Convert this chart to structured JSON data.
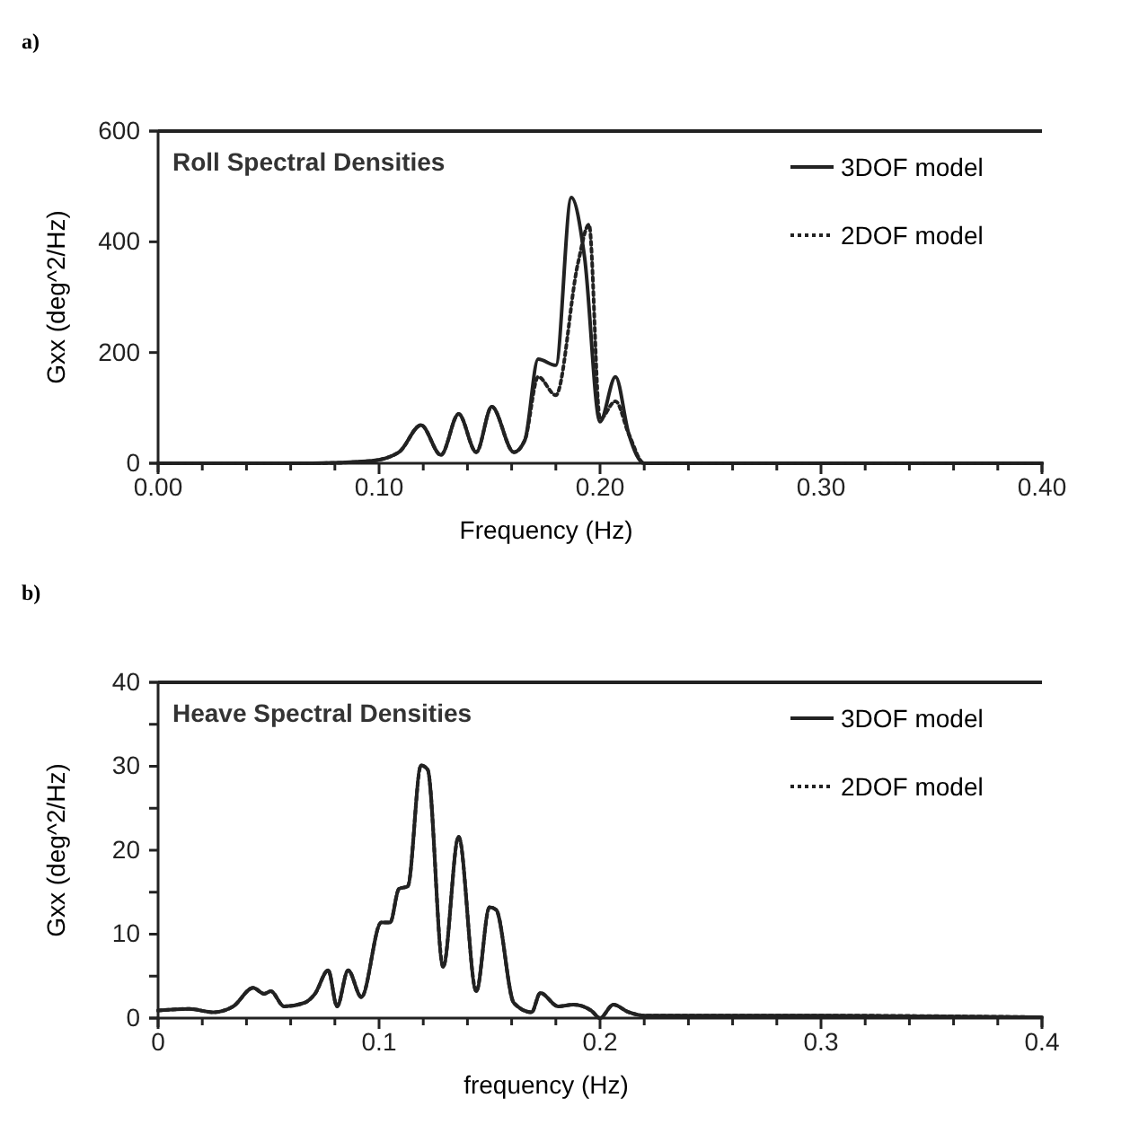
{
  "chart_data": [
    {
      "type": "line",
      "title": "Roll Spectral Densities",
      "xlabel": "Frequency (Hz)",
      "ylabel": "Gxx (deg^2/Hz)",
      "annotations": [
        "a)"
      ],
      "xlim": [
        0,
        0.4
      ],
      "ylim": [
        0,
        600
      ],
      "xticks": [
        {
          "value": 0,
          "label": "0.00"
        },
        {
          "value": 0.02,
          "label": null
        },
        {
          "value": 0.04,
          "label": null
        },
        {
          "value": 0.06,
          "label": null
        },
        {
          "value": 0.08,
          "label": null
        },
        {
          "value": 0.1,
          "label": "0.10"
        },
        {
          "value": 0.12,
          "label": null
        },
        {
          "value": 0.14,
          "label": null
        },
        {
          "value": 0.16,
          "label": null
        },
        {
          "value": 0.18,
          "label": null
        },
        {
          "value": 0.2,
          "label": "0.20"
        },
        {
          "value": 0.22,
          "label": null
        },
        {
          "value": 0.24,
          "label": null
        },
        {
          "value": 0.26,
          "label": null
        },
        {
          "value": 0.28,
          "label": null
        },
        {
          "value": 0.3,
          "label": "0.30"
        },
        {
          "value": 0.32,
          "label": null
        },
        {
          "value": 0.34,
          "label": null
        },
        {
          "value": 0.36,
          "label": null
        },
        {
          "value": 0.38,
          "label": null
        },
        {
          "value": 0.4,
          "label": "0.40"
        }
      ],
      "yticks": [
        0,
        200,
        400,
        600
      ],
      "grid": false,
      "legend": "top right",
      "marker": "none",
      "series": [
        {
          "name": "3DOF model",
          "color": "#222222",
          "line_style": "solid",
          "x": [
            0,
            0.07,
            0.096,
            0.109,
            0.119,
            0.128,
            0.136,
            0.144,
            0.151,
            0.161,
            0.166,
            0.172,
            0.18,
            0.187,
            0.193,
            0.2,
            0.207,
            0.213,
            0.22,
            0.3,
            0.4
          ],
          "values": [
            0,
            0,
            4,
            20,
            69,
            15,
            89,
            20,
            102,
            20,
            42,
            188,
            177,
            480,
            372,
            75,
            156,
            53,
            0,
            0,
            0
          ]
        },
        {
          "name": "2DOF model",
          "color": "#222222",
          "line_style": "dotted",
          "x": [
            0,
            0.07,
            0.096,
            0.109,
            0.119,
            0.128,
            0.136,
            0.144,
            0.151,
            0.161,
            0.166,
            0.172,
            0.18,
            0.19,
            0.195,
            0.2,
            0.207,
            0.213,
            0.22,
            0.3,
            0.4
          ],
          "values": [
            0,
            0,
            4,
            20,
            69,
            15,
            89,
            20,
            102,
            20,
            42,
            156,
            123,
            361,
            431,
            80,
            112,
            53,
            0,
            0,
            0
          ]
        }
      ]
    },
    {
      "type": "line",
      "title": "Heave Spectral Densities",
      "xlabel": "frequency (Hz)",
      "ylabel": "Gxx (deg^2/Hz)",
      "annotations": [
        "b)"
      ],
      "xlim": [
        0,
        0.4
      ],
      "ylim": [
        0,
        40
      ],
      "xticks": [
        0,
        {
          "value": 0.02,
          "label": null
        },
        {
          "value": 0.04,
          "label": null
        },
        {
          "value": 0.06,
          "label": null
        },
        {
          "value": 0.08,
          "label": null
        },
        0.1,
        {
          "value": 0.12,
          "label": null
        },
        {
          "value": 0.14,
          "label": null
        },
        {
          "value": 0.16,
          "label": null
        },
        {
          "value": 0.18,
          "label": null
        },
        0.2,
        {
          "value": 0.22,
          "label": null
        },
        {
          "value": 0.24,
          "label": null
        },
        {
          "value": 0.26,
          "label": null
        },
        {
          "value": 0.28,
          "label": null
        },
        0.3,
        {
          "value": 0.32,
          "label": null
        },
        {
          "value": 0.34,
          "label": null
        },
        {
          "value": 0.36,
          "label": null
        },
        {
          "value": 0.38,
          "label": null
        },
        0.4
      ],
      "yticks": [
        0,
        {
          "value": 5,
          "label": null
        },
        10,
        {
          "value": 15,
          "label": null
        },
        20,
        {
          "value": 25,
          "label": null
        },
        30,
        {
          "value": 35,
          "label": null
        },
        40
      ],
      "grid": false,
      "legend": "top right",
      "marker": "none",
      "series": [
        {
          "name": "3DOF model",
          "color": "#222222",
          "line_style": "solid",
          "x": [
            0,
            0.014,
            0.025,
            0.034,
            0.043,
            0.048,
            0.051,
            0.057,
            0.066,
            0.071,
            0.077,
            0.081,
            0.086,
            0.092,
            0.101,
            0.105,
            0.109,
            0.113,
            0.119,
            0.122,
            0.129,
            0.136,
            0.144,
            0.15,
            0.153,
            0.161,
            0.169,
            0.173,
            0.181,
            0.188,
            0.196,
            0.2,
            0.206,
            0.213,
            0.22,
            0.3,
            0.4
          ],
          "values": [
            0.9,
            1.1,
            0.7,
            1.4,
            3.6,
            2.9,
            3.2,
            1.4,
            1.8,
            2.9,
            5.7,
            1.4,
            5.7,
            2.5,
            11.4,
            11.4,
            15.4,
            15.7,
            30.1,
            29.6,
            6.1,
            21.6,
            3.2,
            13.2,
            12.9,
            1.8,
            0.7,
            3.0,
            1.4,
            1.6,
            0.9,
            0,
            1.6,
            0.7,
            0.3,
            0.3,
            0.1
          ]
        },
        {
          "name": "2DOF model",
          "color": "#222222",
          "line_style": "dotted",
          "x": [
            0,
            0.014,
            0.025,
            0.034,
            0.043,
            0.048,
            0.051,
            0.057,
            0.066,
            0.071,
            0.077,
            0.081,
            0.086,
            0.092,
            0.101,
            0.105,
            0.109,
            0.113,
            0.119,
            0.122,
            0.129,
            0.136,
            0.144,
            0.15,
            0.153,
            0.161,
            0.169,
            0.173,
            0.181,
            0.188,
            0.196,
            0.2,
            0.206,
            0.213,
            0.22,
            0.3,
            0.4
          ],
          "values": [
            0.9,
            1.1,
            0.7,
            1.4,
            3.6,
            2.9,
            3.2,
            1.4,
            1.8,
            2.9,
            5.7,
            1.4,
            5.7,
            2.5,
            11.4,
            11.4,
            15.4,
            15.7,
            30.1,
            29.6,
            6.1,
            21.6,
            3.2,
            13.2,
            12.9,
            1.8,
            0.7,
            3.0,
            1.4,
            1.6,
            0.9,
            0,
            1.6,
            0.7,
            0.3,
            0.3,
            0.1
          ]
        }
      ]
    }
  ]
}
